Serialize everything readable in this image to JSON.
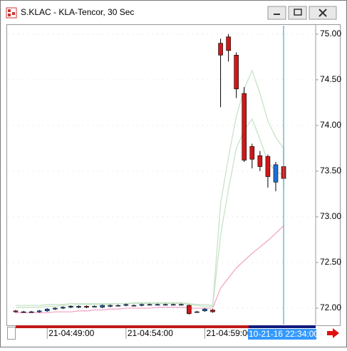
{
  "window": {
    "title": "S.KLAC - KLA-Tencor, 30 Sec"
  },
  "chart_data": {
    "type": "candlestick",
    "categories": [
      null,
      null,
      null,
      null,
      "21-04:49:00",
      null,
      null,
      null,
      null,
      null,
      null,
      null,
      null,
      null,
      "21-04:54:00",
      null,
      null,
      null,
      null,
      null,
      null,
      null,
      null,
      null,
      "21-04:59:00",
      null,
      null,
      null,
      null,
      null,
      null,
      null,
      null,
      null,
      null
    ],
    "open": [
      71.97,
      71.96,
      71.96,
      71.96,
      71.97,
      71.99,
      72.0,
      72.01,
      72.01,
      72.02,
      72.02,
      72.01,
      72.02,
      72.03,
      72.03,
      72.03,
      72.03,
      72.04,
      72.04,
      72.04,
      72.04,
      72.04,
      72.03,
      71.96,
      71.97,
      71.98,
      74.9,
      74.97,
      74.77,
      74.35,
      73.77,
      73.67,
      73.66,
      73.38,
      73.55
    ],
    "high": [
      71.98,
      71.97,
      71.97,
      71.98,
      72.0,
      72.01,
      72.02,
      72.03,
      72.03,
      72.03,
      72.03,
      72.04,
      72.04,
      72.04,
      72.05,
      72.04,
      72.05,
      72.05,
      72.05,
      72.05,
      72.05,
      72.05,
      72.04,
      71.97,
      72.0,
      71.99,
      74.95,
      75.0,
      74.8,
      74.42,
      73.8,
      73.72,
      73.68,
      73.6,
      73.75
    ],
    "low": [
      71.95,
      71.95,
      71.95,
      71.95,
      71.96,
      71.98,
      71.99,
      72.0,
      72.0,
      72.0,
      72.01,
      72.0,
      72.01,
      72.02,
      72.02,
      72.02,
      72.02,
      72.03,
      72.03,
      72.03,
      72.03,
      72.03,
      71.93,
      71.95,
      71.96,
      71.95,
      74.2,
      74.7,
      74.3,
      73.6,
      73.53,
      73.5,
      73.32,
      73.28,
      73.33
    ],
    "close": [
      71.96,
      71.96,
      71.96,
      71.97,
      71.99,
      72.0,
      72.01,
      72.02,
      72.02,
      72.01,
      72.02,
      72.03,
      72.03,
      72.03,
      72.04,
      72.03,
      72.04,
      72.04,
      72.04,
      72.04,
      72.04,
      72.04,
      71.94,
      71.96,
      71.99,
      71.96,
      74.77,
      74.82,
      74.4,
      73.62,
      73.63,
      73.55,
      73.44,
      73.57,
      73.42
    ],
    "up_color": "#1f6fd6",
    "down_color": "#d01818",
    "lines": [
      {
        "color": "#c8e3c8",
        "values": [
          72.03,
          72.03,
          72.03,
          72.03,
          72.04,
          72.04,
          72.04,
          72.05,
          72.05,
          72.05,
          72.05,
          72.05,
          72.05,
          72.05,
          72.05,
          72.06,
          72.06,
          72.06,
          72.06,
          72.06,
          72.06,
          72.06,
          72.05,
          72.04,
          72.04,
          72.03,
          73.15,
          73.65,
          74.1,
          74.4,
          74.6,
          74.35,
          74.05,
          73.87,
          73.75
        ]
      },
      {
        "color": "#c8e3c8",
        "values": [
          72.01,
          72.01,
          72.01,
          72.01,
          72.02,
          72.02,
          72.03,
          72.03,
          72.04,
          72.04,
          72.04,
          72.04,
          72.04,
          72.05,
          72.05,
          72.05,
          72.05,
          72.05,
          72.05,
          72.05,
          72.05,
          72.05,
          72.04,
          72.03,
          72.02,
          72.02,
          72.8,
          73.3,
          73.75,
          73.95,
          74.07,
          73.85,
          73.6,
          73.5,
          73.45
        ]
      },
      {
        "color": "#f4a6c8",
        "values": [
          71.95,
          71.95,
          71.95,
          71.95,
          71.95,
          71.96,
          71.96,
          71.96,
          71.97,
          71.97,
          71.98,
          71.98,
          71.99,
          71.99,
          72.0,
          72.0,
          72.0,
          72.0,
          72.01,
          72.01,
          72.01,
          72.01,
          72.0,
          72.0,
          72.0,
          72.0,
          72.22,
          72.33,
          72.44,
          72.52,
          72.6,
          72.67,
          72.74,
          72.82,
          72.9
        ]
      }
    ],
    "ylim": [
      71.82,
      75.1
    ],
    "yticks": [
      {
        "value": 72,
        "label": "72.00"
      },
      {
        "value": 72.5,
        "label": "72.50"
      },
      {
        "value": 73,
        "label": "73.00"
      },
      {
        "value": 73.5,
        "label": "73.50"
      },
      {
        "value": 74,
        "label": "74.00"
      },
      {
        "value": 74.5,
        "label": "74.50"
      },
      {
        "value": 75,
        "label": "75.00"
      }
    ],
    "grid": true,
    "cursor_time": "10-21-16 22:34:00",
    "cursor_color": "#2a9bb5"
  }
}
